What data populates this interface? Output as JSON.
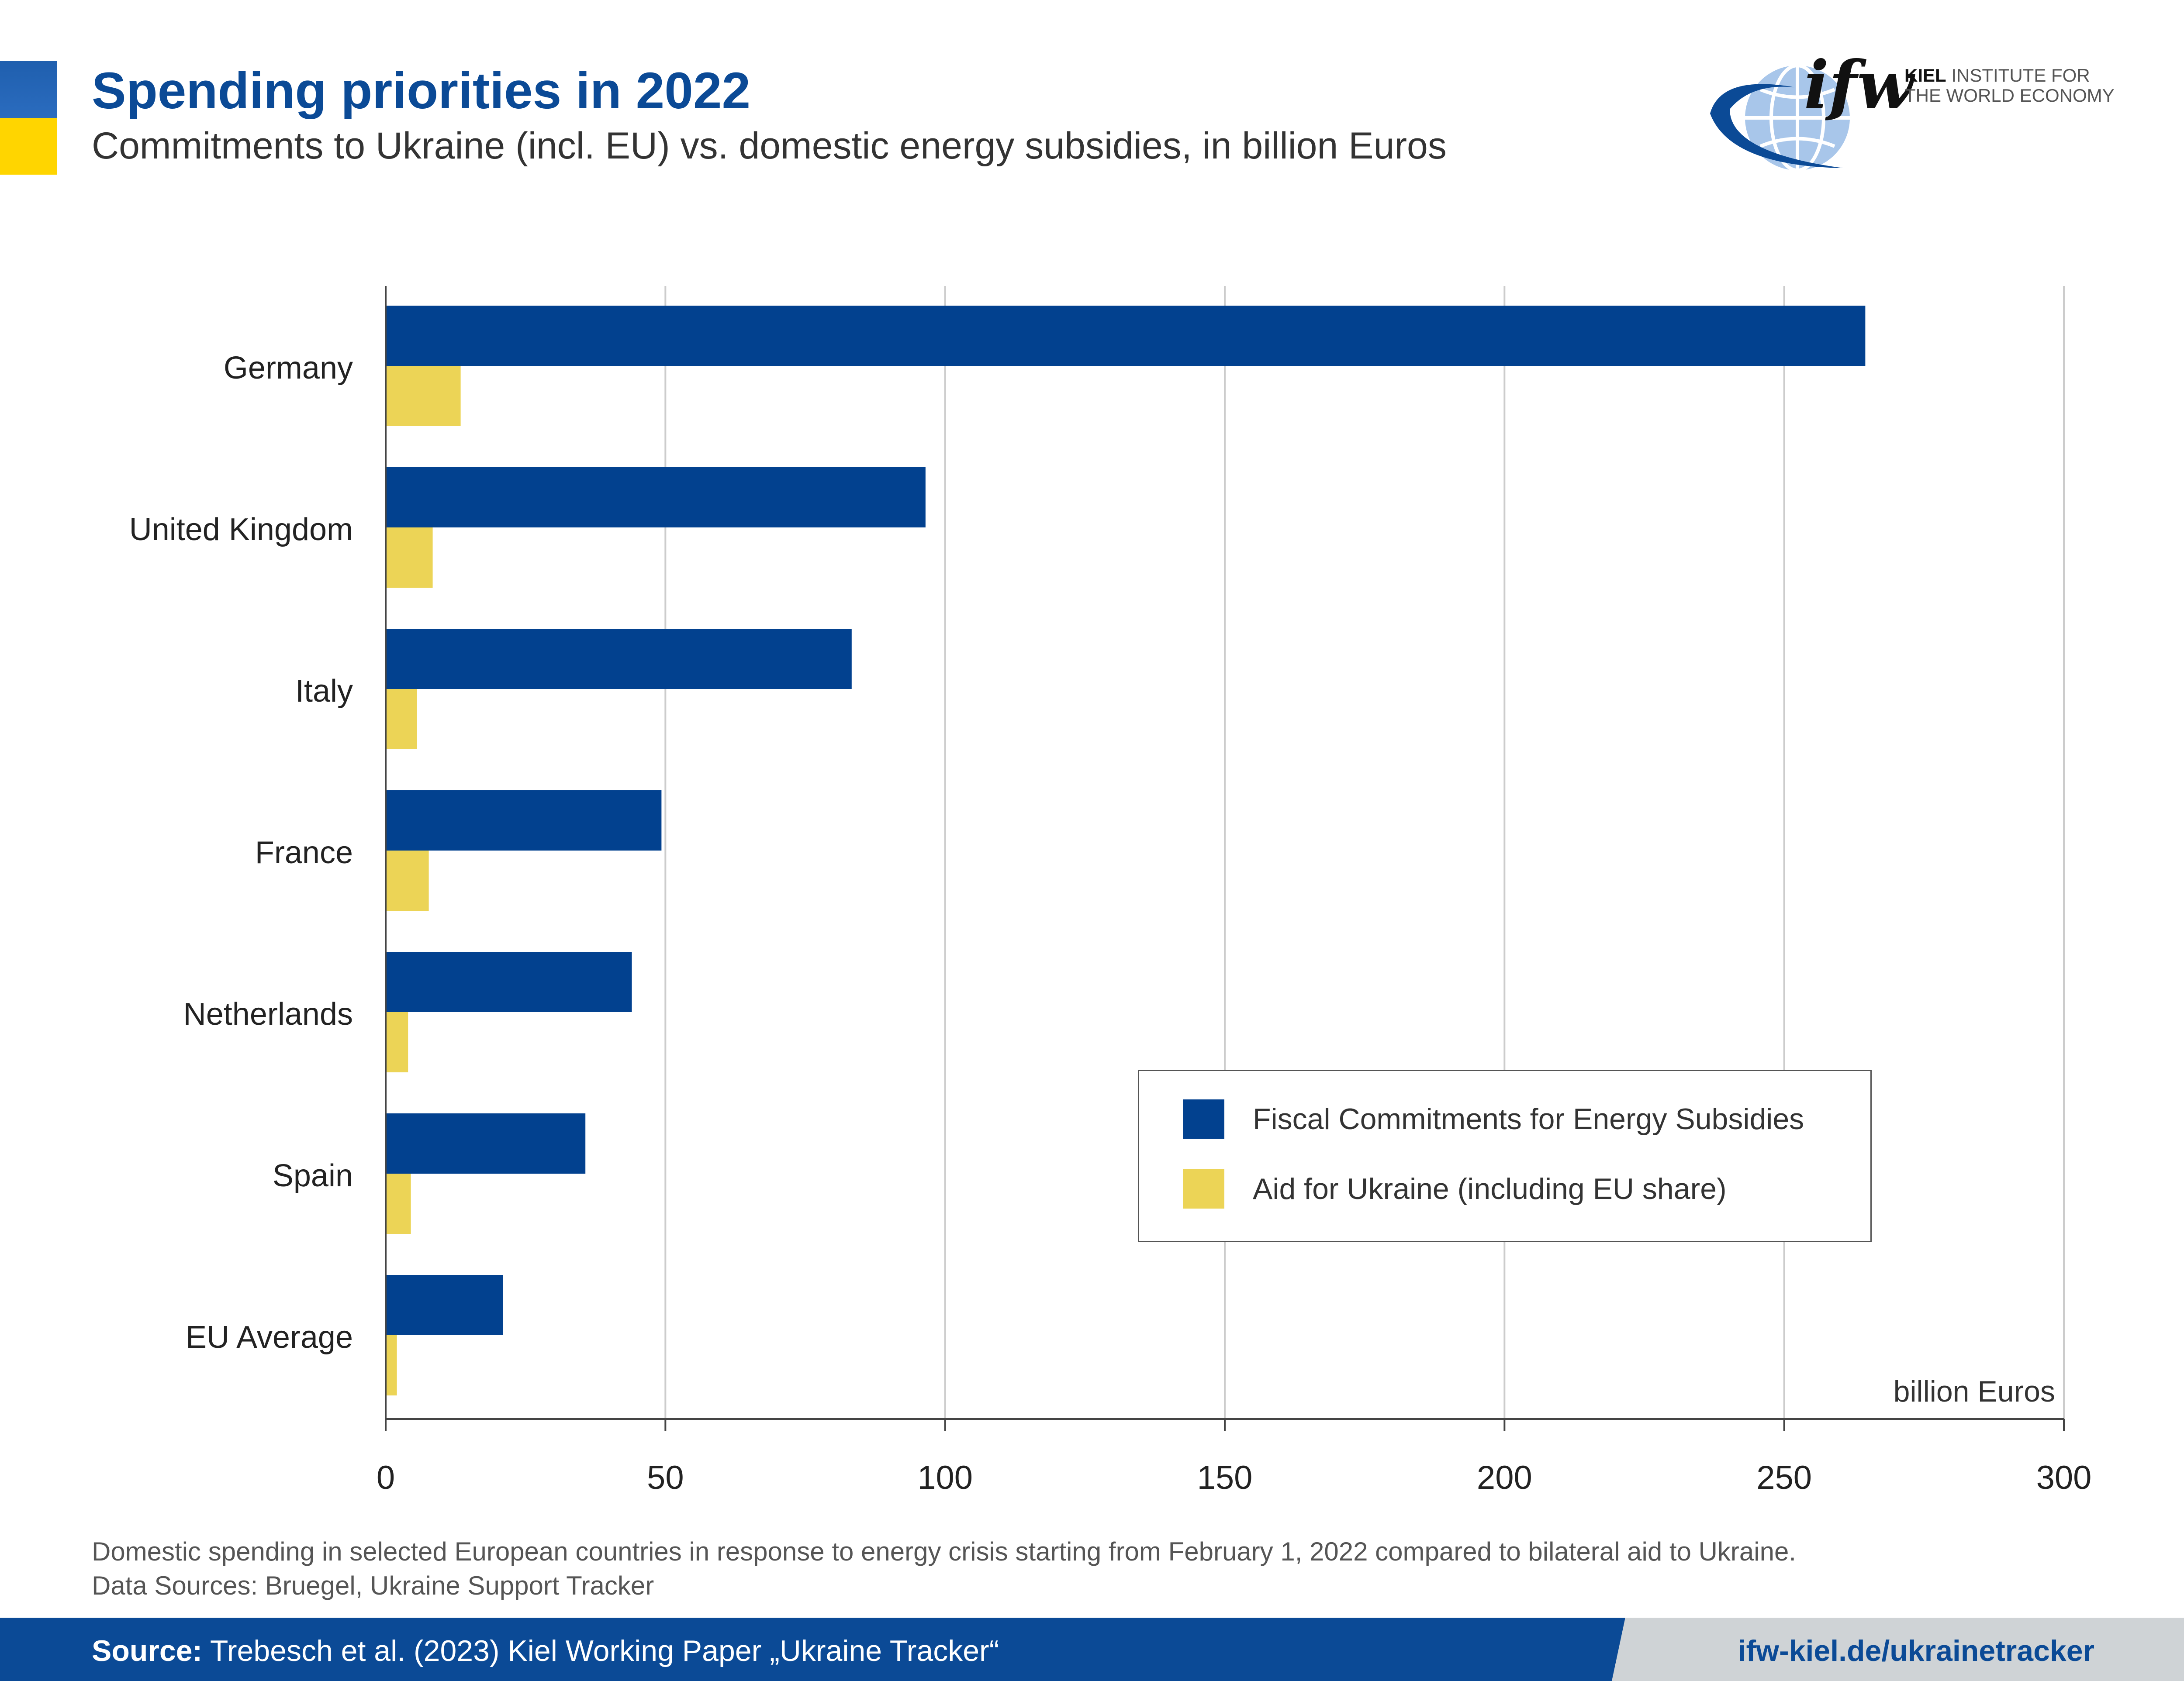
{
  "header": {
    "title": "Spending priorities in 2022",
    "subtitle": "Commitments to Ukraine (incl. EU) vs. domestic energy subsidies, in billion Euros"
  },
  "logo": {
    "word": "ifw",
    "line1_bold": "KIEL",
    "line1_rest": " INSTITUTE FOR",
    "line2": "THE WORLD ECONOMY"
  },
  "colors": {
    "energy": "#02418f",
    "ukraine": "#ecd456",
    "grid": "#cccccc",
    "axis": "#444444"
  },
  "chart_data": {
    "type": "bar",
    "orientation": "horizontal",
    "categories": [
      "Germany",
      "United Kingdom",
      "Italy",
      "France",
      "Netherlands",
      "Spain",
      "EU Average"
    ],
    "series": [
      {
        "name": "Fiscal Commitments for Energy Subsidies",
        "values": [
          264.5,
          96.5,
          83.3,
          49.3,
          44.0,
          35.7,
          21.0
        ]
      },
      {
        "name": "Aid for Ukraine (including EU share)",
        "values": [
          13.4,
          8.4,
          5.6,
          7.7,
          4.0,
          4.5,
          2.0
        ]
      }
    ],
    "xlim": [
      0,
      300
    ],
    "xticks": [
      0,
      50,
      100,
      150,
      200,
      250,
      300
    ],
    "xlabel": "billion Euros",
    "grid": true,
    "legend_position": "lower-right"
  },
  "footnote": {
    "line1": "Domestic spending in selected European countries in response to energy crisis starting from February 1, 2022 compared to bilateral aid to Ukraine.",
    "line2": "Data Sources: Bruegel, Ukraine Support Tracker"
  },
  "footer": {
    "source_label": "Source:",
    "source_text": " Trebesch et al. (2023) Kiel Working Paper „Ukraine Tracker“",
    "url": "ifw-kiel.de/ukrainetracker"
  }
}
